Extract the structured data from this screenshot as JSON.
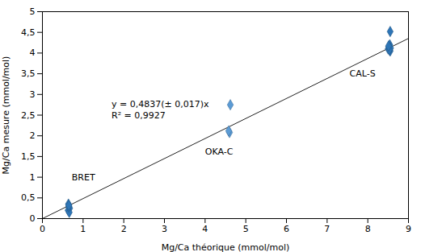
{
  "chart_data": {
    "type": "scatter",
    "title": "",
    "xlabel": "Mg/Ca théorique (mmol/mol)",
    "ylabel": "Mg/Ca mesure (mmol/mol)",
    "xlim": [
      0,
      9
    ],
    "ylim": [
      0,
      5.0
    ],
    "xticks": [
      0,
      1,
      2,
      3,
      4,
      5,
      6,
      7,
      8,
      9
    ],
    "yticks": [
      0,
      {
        "value": 0.5,
        "label": "0,5"
      },
      1,
      {
        "value": 1.5,
        "label": "1,5"
      },
      2,
      {
        "value": 2.5,
        "label": "2,5"
      },
      3,
      {
        "value": 3.5,
        "label": "3,5"
      },
      4,
      {
        "value": 4.5,
        "label": "4,5"
      },
      5
    ],
    "series": [
      {
        "type": "line",
        "color": "#222222",
        "x": [
          0,
          9
        ],
        "values": [
          0,
          4.3533
        ]
      },
      {
        "name": "BRET",
        "type": "scatter",
        "marker": "diamond",
        "color": "#2e75b6",
        "x": [
          0.65,
          0.63,
          0.67,
          0.64,
          0.66,
          0.65,
          0.65
        ],
        "values": [
          0.3,
          0.2,
          0.25,
          0.35,
          0.15,
          0.28,
          0.32
        ],
        "label_x": 0.72,
        "label_y": 1.0
      },
      {
        "name": "OKA-C",
        "type": "scatter",
        "marker": "diamond",
        "color": "#5b9bd5",
        "x": [
          4.6,
          4.58,
          4.62
        ],
        "values": [
          2.08,
          2.12,
          2.75
        ],
        "label_x": 4.0,
        "label_y": 1.62
      },
      {
        "name": "CAL-S",
        "type": "scatter",
        "marker": "diamond",
        "color": "#2e75b6",
        "x": [
          8.55,
          8.5,
          8.52,
          8.54,
          8.56,
          8.53,
          8.51,
          8.55
        ],
        "values": [
          4.05,
          4.1,
          4.15,
          4.2,
          4.12,
          4.08,
          4.17,
          4.52
        ],
        "label_x": 7.55,
        "label_y": 3.5
      }
    ],
    "annotations": [
      {
        "text": "y = 0,4837(± 0,017)x",
        "x": 1.7,
        "y": 2.85
      },
      {
        "text": "R² = 0,9927",
        "x": 1.7,
        "y": 2.57
      }
    ]
  }
}
